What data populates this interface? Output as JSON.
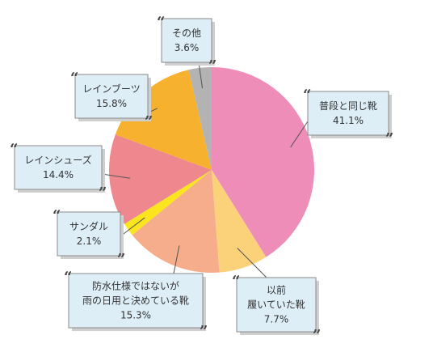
{
  "chart_data": {
    "type": "pie",
    "title": "",
    "start_angle_deg": 0,
    "direction": "clockwise",
    "slices": [
      {
        "label_lines": [
          "普段と同じ靴"
        ],
        "value": 41.1,
        "value_label": "41.1%",
        "color": "#ED8DB8"
      },
      {
        "label_lines": [
          "以前",
          "履いていた靴"
        ],
        "value": 7.7,
        "value_label": "7.7%",
        "color": "#FBD27A"
      },
      {
        "label_lines": [
          "防水仕様ではないが",
          "雨の日用と決めている靴"
        ],
        "value": 15.3,
        "value_label": "15.3%",
        "color": "#F5AD8C"
      },
      {
        "label_lines": [
          "サンダル"
        ],
        "value": 2.1,
        "value_label": "2.1%",
        "color": "#FAE51E"
      },
      {
        "label_lines": [
          "レインシューズ"
        ],
        "value": 14.4,
        "value_label": "14.4%",
        "color": "#EF878E"
      },
      {
        "label_lines": [
          "レインブーツ"
        ],
        "value": 15.8,
        "value_label": "15.8%",
        "color": "#F6B12E"
      },
      {
        "label_lines": [
          "その他"
        ],
        "value": 3.6,
        "value_label": "3.6%",
        "color": "#B3B3B3"
      }
    ]
  }
}
